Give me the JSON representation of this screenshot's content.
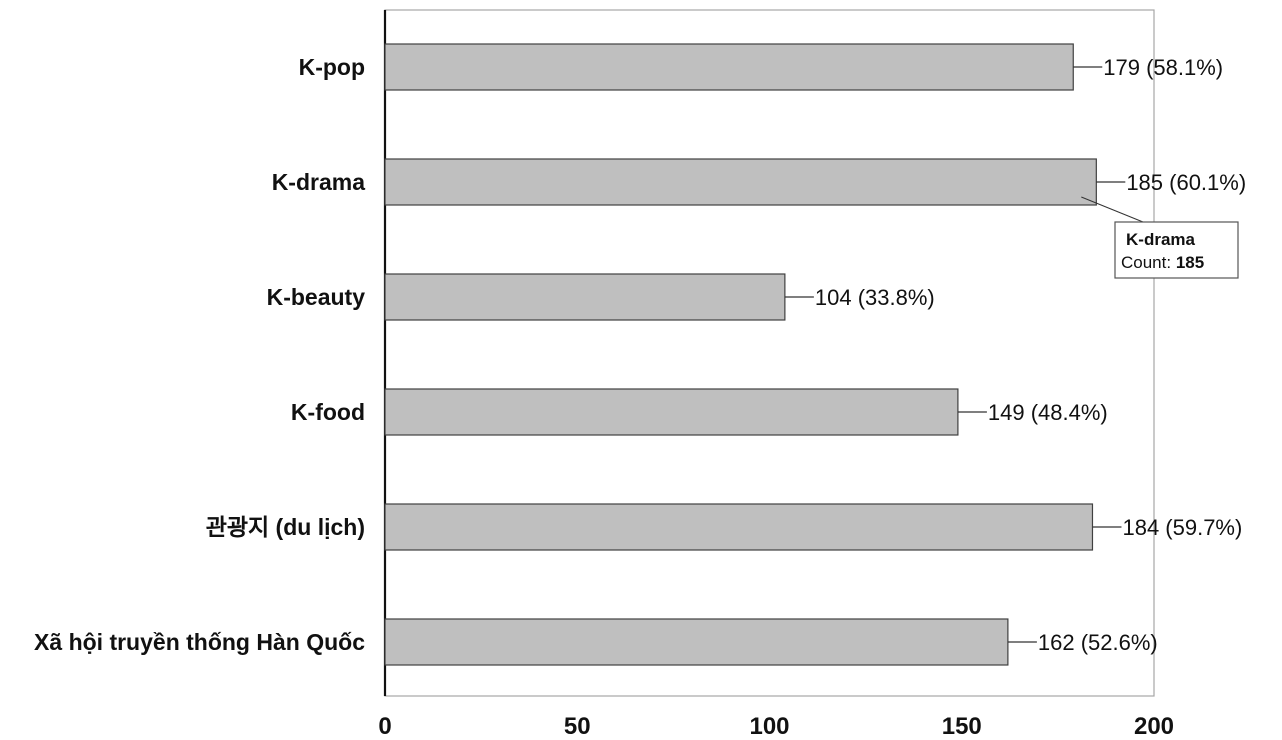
{
  "chart_data": {
    "type": "bar",
    "orientation": "horizontal",
    "categories": [
      "K-pop",
      "K-drama",
      "K-beauty",
      "K-food",
      "관광지 (du lịch)",
      "Xã hội truyền thống Hàn Quốc"
    ],
    "values": [
      179,
      185,
      104,
      149,
      184,
      162
    ],
    "value_labels": [
      "179 (58.1%)",
      "185 (60.1%)",
      "104 (33.8%)",
      "149 (48.4%)",
      "184 (59.7%)",
      "162 (52.6%)"
    ],
    "x_ticks": [
      "0",
      "50",
      "100",
      "150",
      "200"
    ],
    "xlim": [
      0,
      200
    ],
    "title": "",
    "xlabel": "",
    "ylabel": "",
    "grid": false,
    "colors": {
      "bar_fill": "#bfbfbf",
      "bar_stroke": "#404040",
      "axis": "#111111",
      "frame": "#a6a6a6"
    }
  },
  "tooltip": {
    "category": "K-drama",
    "count_label": "Count: ",
    "count_value": "185"
  }
}
